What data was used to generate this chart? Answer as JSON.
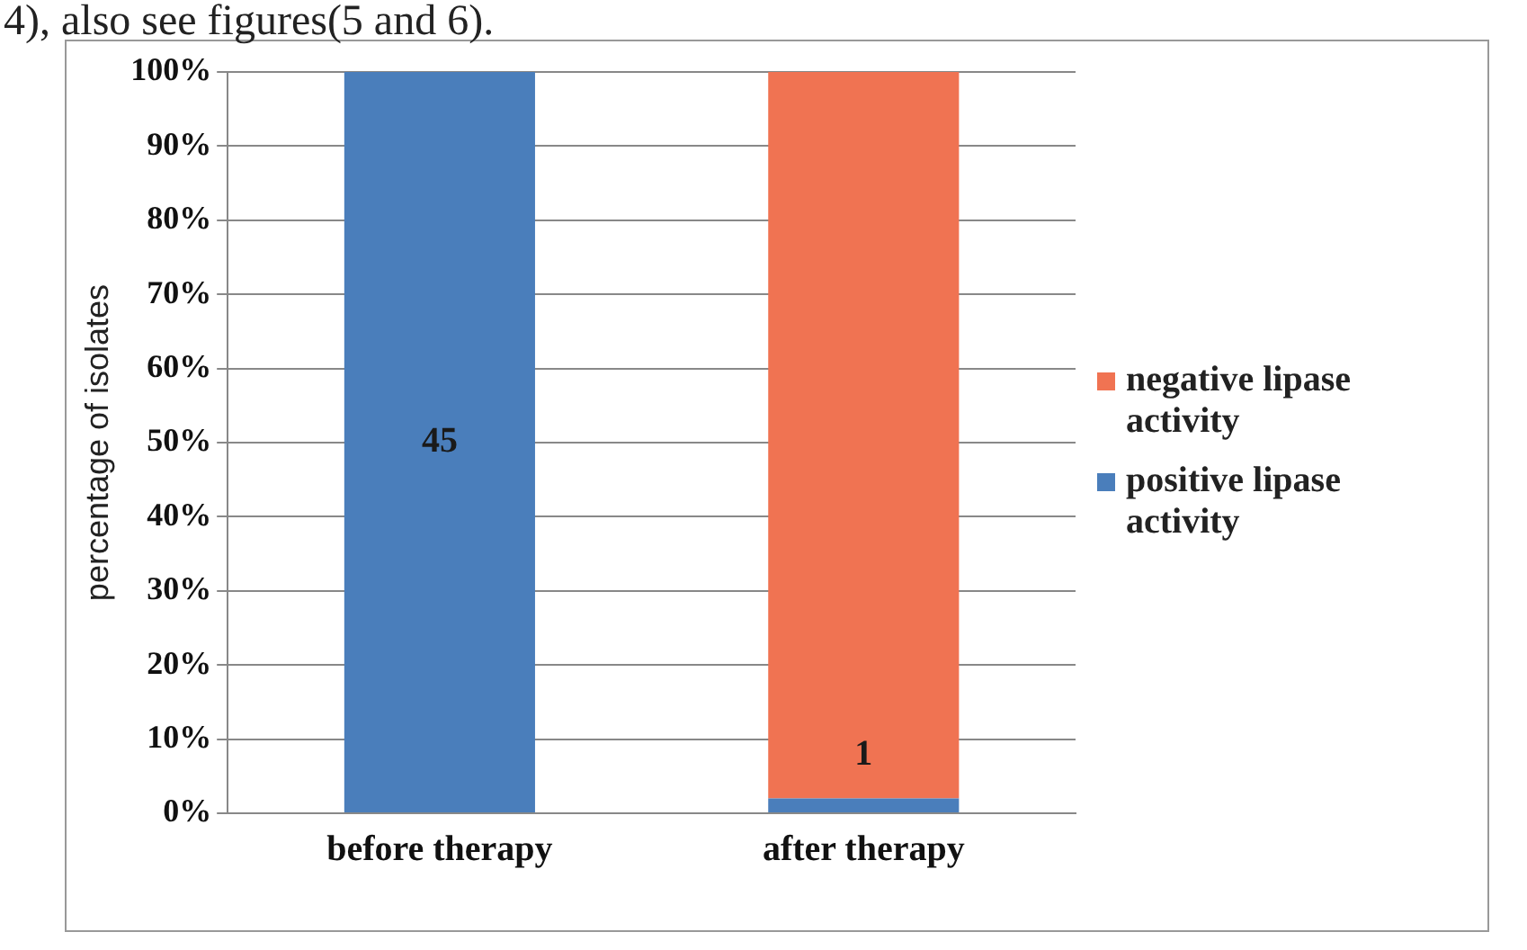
{
  "chart_data": {
    "type": "bar",
    "stacked": true,
    "ylabel": "percentage of isolates",
    "categories": [
      "before therapy",
      "after therapy"
    ],
    "series": [
      {
        "name": "positive lipase activity",
        "color": "#4a7ebb",
        "values": [
          100,
          2
        ]
      },
      {
        "name": "negative lipase activity",
        "color": "#f07352",
        "values": [
          0,
          98
        ]
      }
    ],
    "ylim": [
      0,
      100
    ],
    "yticks": [
      {
        "value": 0,
        "label": "0%"
      },
      {
        "value": 10,
        "label": "10%"
      },
      {
        "value": 20,
        "label": "20%"
      },
      {
        "value": 30,
        "label": "30%"
      },
      {
        "value": 40,
        "label": "40%"
      },
      {
        "value": 50,
        "label": "50%"
      },
      {
        "value": 60,
        "label": "60%"
      },
      {
        "value": 70,
        "label": "70%"
      },
      {
        "value": 80,
        "label": "80%"
      },
      {
        "value": 90,
        "label": "90%"
      },
      {
        "value": 100,
        "label": "100%"
      }
    ],
    "grid": "y",
    "legend": "right",
    "annotations": [
      "4), also see figures(5 and 6).",
      "45",
      "1"
    ]
  }
}
